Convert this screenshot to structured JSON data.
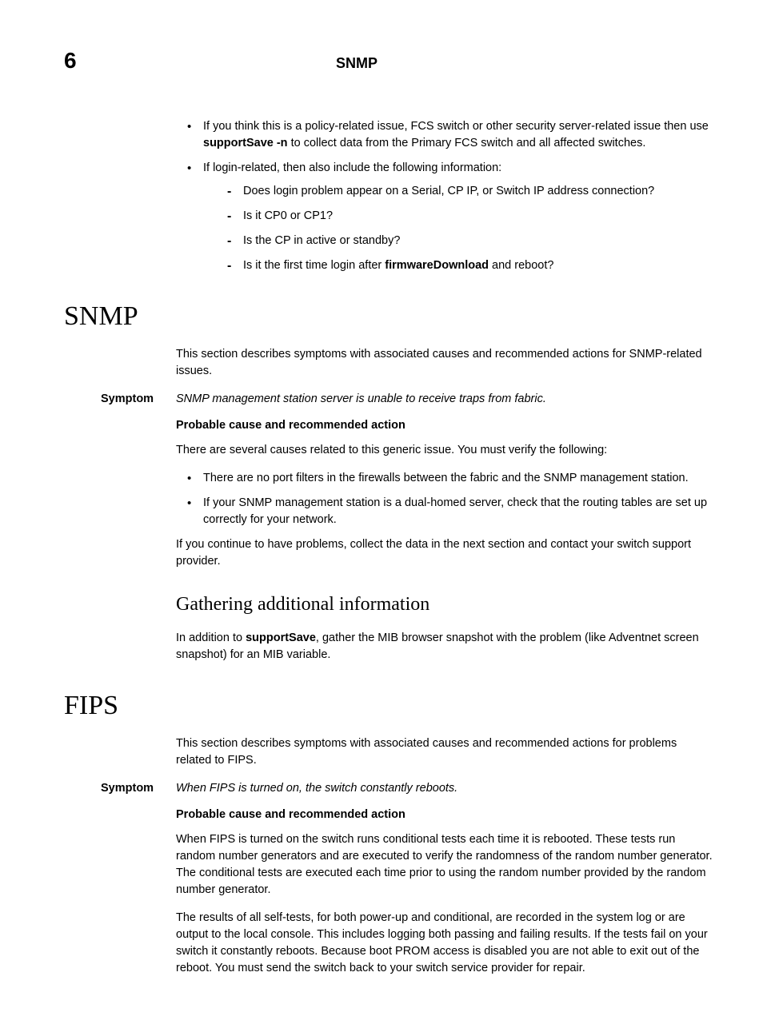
{
  "header": {
    "chapter_number": "6",
    "running_head": "SNMP"
  },
  "top_bullets": {
    "item1_pre": "If you think this is a policy-related issue, FCS switch or other security server-related issue then use ",
    "item1_bold": "supportSave -n",
    "item1_post": " to collect data from the Primary FCS switch and all affected switches.",
    "item2": "If login-related, then also include the following information:",
    "dash1": "Does login problem appear on a Serial, CP IP, or Switch IP address connection?",
    "dash2": "Is it CP0 or CP1?",
    "dash3": "Is the CP in active or standby?",
    "dash4_pre": "Is it the first time login after ",
    "dash4_bold": "firmwareDownload",
    "dash4_post": " and reboot?"
  },
  "snmp": {
    "heading": "SNMP",
    "intro": "This section describes symptoms with associated causes and recommended actions for SNMP-related issues.",
    "symptom_label": "Symptom",
    "symptom_text": "SNMP management station server is unable to receive traps from fabric.",
    "probable_cause_label": "Probable cause and recommended action",
    "probable_cause_text": "There are several causes related to this generic issue. You must verify the following:",
    "bullet1": "There are no port filters in the firewalls between the fabric and the SNMP management station.",
    "bullet2": "If your SNMP management station is a dual-homed server, check that the routing tables are set up correctly for your network.",
    "continue_text": "If you continue to have problems, collect the data in the next section and contact your switch support provider.",
    "sub_heading": "Gathering additional information",
    "sub_pre": "In addition to ",
    "sub_bold": "supportSave",
    "sub_post": ", gather the MIB browser snapshot with the problem (like Adventnet screen snapshot) for an MIB variable."
  },
  "fips": {
    "heading": "FIPS",
    "intro": "This section describes symptoms with associated causes and recommended actions for problems related to FIPS.",
    "symptom_label": "Symptom",
    "symptom_text": "When FIPS is turned on, the switch constantly reboots.",
    "probable_cause_label": "Probable cause and recommended action",
    "para1": "When FIPS is turned on the switch runs conditional tests each time it is rebooted. These tests run random number generators and are executed to verify the randomness of the random number generator. The conditional tests are executed each time prior to using the random number provided by the random number generator.",
    "para2": "The results of all self-tests, for both power-up and conditional, are recorded in the system log or are output to the local console. This includes logging both passing and failing results. If the tests fail on your switch it constantly reboots. Because boot PROM access is disabled you are not able to exit out of the reboot. You must send the switch back to your switch service provider for repair."
  }
}
